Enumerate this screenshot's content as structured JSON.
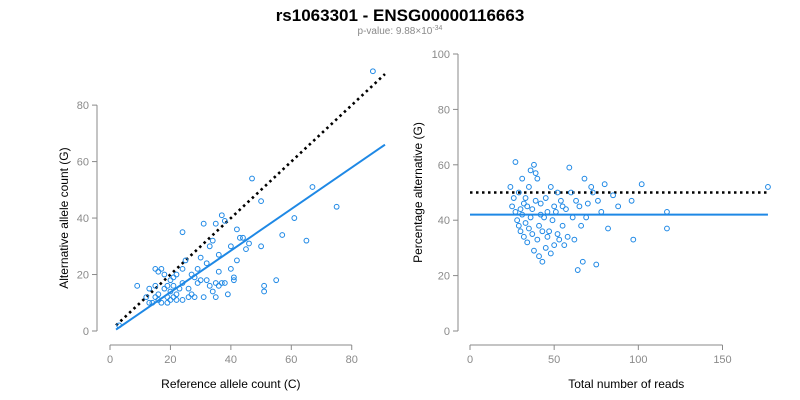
{
  "title": "rs1063301 - ENSG00000116663",
  "subtitle": {
    "prefix": "p-value: ",
    "mantissa": "9.88",
    "times": "×",
    "base": "10",
    "exponent": "-34"
  },
  "colors": {
    "series": "#1e88e5",
    "reference_line": "#000000",
    "axis": "#8a8a8a"
  },
  "chart_data": [
    {
      "type": "scatter",
      "xlabel": "Reference allele count (C)",
      "ylabel": "Alternative allele count (G)",
      "xlim": [
        0,
        92
      ],
      "ylim": [
        0,
        85
      ],
      "xticks": [
        0,
        20,
        40,
        60,
        80
      ],
      "yticks": [
        0,
        20,
        40,
        60,
        80
      ],
      "xtick_labels": [
        "0",
        "20",
        "40",
        "60",
        "80"
      ],
      "ytick_labels": [
        "0",
        "20",
        "40",
        "60",
        "80"
      ],
      "grid": false,
      "reference_line": {
        "style": "dotted",
        "color": "#000000",
        "x": [
          2,
          91
        ],
        "y": [
          2,
          91
        ]
      },
      "fit_line": {
        "style": "solid",
        "color": "#1e88e5",
        "x": [
          2,
          91
        ],
        "y": [
          0.5,
          66
        ]
      },
      "points": [
        [
          3,
          2
        ],
        [
          9,
          16
        ],
        [
          12,
          12
        ],
        [
          13,
          10
        ],
        [
          13,
          15
        ],
        [
          14,
          10
        ],
        [
          15,
          16
        ],
        [
          15,
          12
        ],
        [
          15,
          22
        ],
        [
          16,
          21
        ],
        [
          16,
          13
        ],
        [
          16,
          11
        ],
        [
          17,
          22
        ],
        [
          17,
          10
        ],
        [
          18,
          15
        ],
        [
          18,
          20
        ],
        [
          19,
          12
        ],
        [
          19,
          10
        ],
        [
          19,
          16
        ],
        [
          20,
          11
        ],
        [
          20,
          14
        ],
        [
          20,
          18
        ],
        [
          21,
          16
        ],
        [
          21,
          19
        ],
        [
          21,
          12
        ],
        [
          22,
          13
        ],
        [
          22,
          20
        ],
        [
          22,
          11
        ],
        [
          23,
          15
        ],
        [
          24,
          17
        ],
        [
          24,
          22
        ],
        [
          24,
          35
        ],
        [
          24,
          11
        ],
        [
          25,
          25
        ],
        [
          26,
          15
        ],
        [
          26,
          12
        ],
        [
          27,
          20
        ],
        [
          27,
          13
        ],
        [
          28,
          19
        ],
        [
          28,
          12
        ],
        [
          29,
          22
        ],
        [
          29,
          17
        ],
        [
          30,
          18
        ],
        [
          30,
          26
        ],
        [
          31,
          12
        ],
        [
          31,
          38
        ],
        [
          32,
          24
        ],
        [
          32,
          18
        ],
        [
          33,
          30
        ],
        [
          33,
          16
        ],
        [
          34,
          14
        ],
        [
          34,
          32
        ],
        [
          35,
          17
        ],
        [
          35,
          12
        ],
        [
          35,
          38
        ],
        [
          36,
          21
        ],
        [
          36,
          27
        ],
        [
          36,
          16
        ],
        [
          37,
          17
        ],
        [
          37,
          41
        ],
        [
          38,
          17
        ],
        [
          38,
          39
        ],
        [
          39,
          13
        ],
        [
          40,
          30
        ],
        [
          40,
          22
        ],
        [
          41,
          18
        ],
        [
          41,
          19
        ],
        [
          42,
          25
        ],
        [
          42,
          36
        ],
        [
          43,
          33
        ],
        [
          44,
          33
        ],
        [
          45,
          29
        ],
        [
          46,
          31
        ],
        [
          47,
          54
        ],
        [
          50,
          30
        ],
        [
          50,
          46
        ],
        [
          51,
          16
        ],
        [
          51,
          14
        ],
        [
          55,
          18
        ],
        [
          57,
          34
        ],
        [
          61,
          40
        ],
        [
          65,
          32
        ],
        [
          67,
          51
        ],
        [
          75,
          44
        ],
        [
          87,
          92
        ]
      ]
    },
    {
      "type": "scatter",
      "xlabel": "Total number of reads",
      "ylabel": "Percentage alternative (G)",
      "xlim": [
        0,
        180
      ],
      "ylim": [
        0,
        100
      ],
      "xticks": [
        0,
        50,
        100,
        150
      ],
      "yticks": [
        0,
        20,
        40,
        60,
        80,
        100
      ],
      "xtick_labels": [
        "0",
        "50",
        "100",
        "150"
      ],
      "ytick_labels": [
        "0",
        "20",
        "40",
        "60",
        "80",
        "100"
      ],
      "grid": false,
      "reference_line": {
        "style": "dotted",
        "color": "#000000",
        "x": [
          0,
          177
        ],
        "y": [
          50,
          50
        ]
      },
      "fit_line": {
        "style": "solid",
        "color": "#1e88e5",
        "x": [
          0,
          177
        ],
        "y": [
          42,
          42
        ]
      },
      "points": [
        [
          24,
          52
        ],
        [
          25,
          45
        ],
        [
          26,
          48
        ],
        [
          27,
          43
        ],
        [
          27,
          61
        ],
        [
          28,
          40
        ],
        [
          29,
          38
        ],
        [
          29,
          50
        ],
        [
          30,
          44
        ],
        [
          30,
          36
        ],
        [
          31,
          55
        ],
        [
          31,
          42
        ],
        [
          32,
          34
        ],
        [
          32,
          46
        ],
        [
          33,
          39
        ],
        [
          33,
          48
        ],
        [
          34,
          32
        ],
        [
          34,
          45
        ],
        [
          35,
          37
        ],
        [
          35,
          52
        ],
        [
          36,
          41
        ],
        [
          36,
          58
        ],
        [
          37,
          35
        ],
        [
          37,
          44
        ],
        [
          38,
          60
        ],
        [
          38,
          29
        ],
        [
          39,
          47
        ],
        [
          39,
          57
        ],
        [
          40,
          33
        ],
        [
          40,
          55
        ],
        [
          41,
          38
        ],
        [
          41,
          27
        ],
        [
          42,
          42
        ],
        [
          42,
          46
        ],
        [
          43,
          36
        ],
        [
          43,
          25
        ],
        [
          44,
          41
        ],
        [
          45,
          30
        ],
        [
          45,
          48
        ],
        [
          46,
          34
        ],
        [
          46,
          43
        ],
        [
          47,
          36
        ],
        [
          48,
          28
        ],
        [
          48,
          52
        ],
        [
          49,
          40
        ],
        [
          50,
          31
        ],
        [
          50,
          45
        ],
        [
          51,
          43
        ],
        [
          52,
          35
        ],
        [
          52,
          50
        ],
        [
          53,
          33
        ],
        [
          54,
          47
        ],
        [
          55,
          38
        ],
        [
          55,
          45
        ],
        [
          56,
          31
        ],
        [
          57,
          44
        ],
        [
          58,
          34
        ],
        [
          59,
          59
        ],
        [
          60,
          50
        ],
        [
          61,
          41
        ],
        [
          62,
          33
        ],
        [
          63,
          47
        ],
        [
          64,
          22
        ],
        [
          65,
          45
        ],
        [
          66,
          38
        ],
        [
          67,
          25
        ],
        [
          68,
          55
        ],
        [
          69,
          41
        ],
        [
          70,
          46
        ],
        [
          72,
          52
        ],
        [
          73,
          50
        ],
        [
          75,
          24
        ],
        [
          76,
          47
        ],
        [
          78,
          43
        ],
        [
          80,
          53
        ],
        [
          82,
          37
        ],
        [
          85,
          49
        ],
        [
          88,
          45
        ],
        [
          96,
          47
        ],
        [
          97,
          33
        ],
        [
          102,
          53
        ],
        [
          117,
          43
        ],
        [
          117,
          37
        ],
        [
          177,
          52
        ]
      ]
    }
  ]
}
